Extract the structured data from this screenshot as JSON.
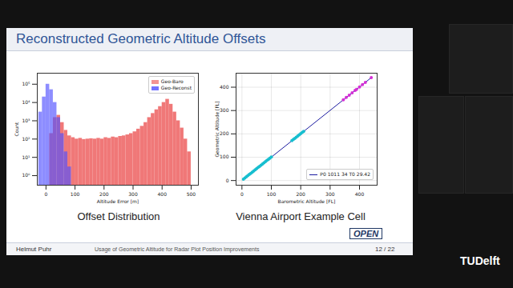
{
  "slide": {
    "title": "Reconstructed Geometric Altitude Offsets",
    "author": "Helmut Puhr",
    "talk": "Usage of Geometric Altitude  for Radar Plot Position Improvements",
    "page": "12 / 22",
    "logo": "OPEN",
    "institution": "TUDelft"
  },
  "chart_data": [
    {
      "type": "histogram",
      "caption": "Offset Distribution",
      "xlabel": "Altitude Error [m]",
      "ylabel": "Count",
      "log": "y",
      "grid": false,
      "legend": "upper right",
      "bins": [
        -25,
        -12.5,
        0,
        12.5,
        25,
        37.5,
        50,
        62.5,
        75,
        87.5,
        100,
        112.5,
        125,
        137.5,
        150,
        162.5,
        175,
        187.5,
        200,
        212.5,
        225,
        237.5,
        250,
        262.5,
        275,
        287.5,
        300,
        312.5,
        325,
        337.5,
        350,
        362.5,
        375,
        387.5,
        400,
        412.5,
        425,
        437.5,
        450,
        462.5,
        475,
        487.5,
        500
      ],
      "series": [
        {
          "name": "Geo-Baro",
          "color": "#f07878",
          "values": [
            null,
            null,
            null,
            200,
            1500,
            2000,
            800,
            300,
            150,
            120,
            100,
            110,
            95,
            100,
            105,
            100,
            110,
            100,
            120,
            110,
            130,
            120,
            140,
            150,
            170,
            200,
            250,
            350,
            500,
            800,
            1500,
            2500,
            4000,
            6000,
            10000,
            15000,
            8000,
            3000,
            1000,
            400,
            100,
            20
          ]
        },
        {
          "name": "Geo-Reconst",
          "color": "#5050ff",
          "values": [
            3000,
            20000,
            100000,
            50000,
            10000,
            1500,
            200,
            20,
            3,
            null,
            null,
            null,
            null,
            null,
            null,
            null,
            null,
            null,
            null,
            null,
            null,
            null,
            null,
            null,
            null,
            null,
            null,
            null,
            null,
            null,
            null,
            null,
            null,
            null,
            null,
            null,
            null,
            null,
            null,
            null,
            null,
            null
          ]
        }
      ],
      "xlim": [
        -30,
        525
      ],
      "xticks": [
        0,
        100,
        200,
        300,
        400,
        500
      ],
      "ylim": [
        0.3,
        400000
      ],
      "yticks": [
        {
          "value": 1,
          "label": "10⁰"
        },
        {
          "value": 10,
          "label": "10¹"
        },
        {
          "value": 100,
          "label": "10²"
        },
        {
          "value": 1000,
          "label": "10³"
        },
        {
          "value": 10000,
          "label": "10⁴"
        },
        {
          "value": 100000,
          "label": "10⁵"
        }
      ]
    },
    {
      "type": "scatter",
      "caption": "Vienna Airport Example Cell",
      "xlabel": "Barometric Altitude [FL]",
      "ylabel": "Geometric Altitude [FL]",
      "grid": true,
      "legend": "lower right",
      "series": [
        {
          "name": "P0 1011 34 T0 29.42",
          "type": "line",
          "color": "#1a1aa0",
          "x": [
            5,
            440
          ],
          "values": [
            5,
            441
          ]
        },
        {
          "type": "scatter",
          "marker": "o",
          "color": "#17becf",
          "x": [
            5,
            10,
            15,
            20,
            25,
            30,
            35,
            40,
            45,
            50,
            55,
            60,
            65,
            70,
            75,
            80,
            85,
            90,
            95,
            100,
            170,
            175,
            180,
            185,
            190,
            195,
            200,
            205,
            210
          ],
          "values": [
            6,
            11,
            16,
            21,
            26,
            31,
            36,
            41,
            46,
            51,
            56,
            61,
            66,
            71,
            76,
            81,
            86,
            91,
            96,
            101,
            171,
            176,
            181,
            186,
            191,
            196,
            201,
            206,
            211
          ]
        },
        {
          "type": "scatter",
          "marker": "o",
          "color": "#d62fd6",
          "x": [
            345,
            355,
            365,
            375,
            385,
            390,
            400,
            410,
            420,
            440
          ],
          "values": [
            346,
            356,
            366,
            376,
            386,
            391,
            401,
            411,
            421,
            441
          ]
        }
      ],
      "xlim": [
        -20,
        460
      ],
      "xticks": [
        0,
        100,
        200,
        300,
        400
      ],
      "ylim": [
        -20,
        460
      ],
      "yticks": [
        0,
        100,
        200,
        300,
        400
      ]
    }
  ]
}
